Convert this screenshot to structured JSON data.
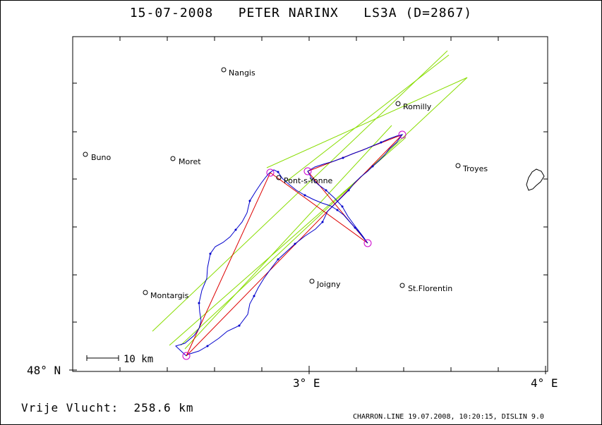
{
  "header": {
    "title": "15-07-2008   PETER NARINX   LS3A (D=2867)"
  },
  "footer": {
    "distance_label": "Vrije Vlucht:  258.6 km",
    "program_info": "CHARRON.LINE 19.07.2008, 10:20:15, DISLIN 9.0"
  },
  "axes": {
    "y_label": "48° N",
    "x_labels": [
      "3° E",
      "4° E"
    ]
  },
  "scale_bar": {
    "label": "10 km"
  },
  "towns": [
    {
      "name": "Nangis"
    },
    {
      "name": "Romilly"
    },
    {
      "name": "Buno"
    },
    {
      "name": "Moret"
    },
    {
      "name": "Troyes"
    },
    {
      "name": "Pont-s-Yonne"
    },
    {
      "name": "Montargis"
    },
    {
      "name": "Joigny"
    },
    {
      "name": "St.Florentin"
    }
  ],
  "colors": {
    "track": "#0000cc",
    "task_line": "#dd0000",
    "sector_line": "#88dd00",
    "turnpoint": "#cc00cc",
    "frame": "#000000"
  }
}
